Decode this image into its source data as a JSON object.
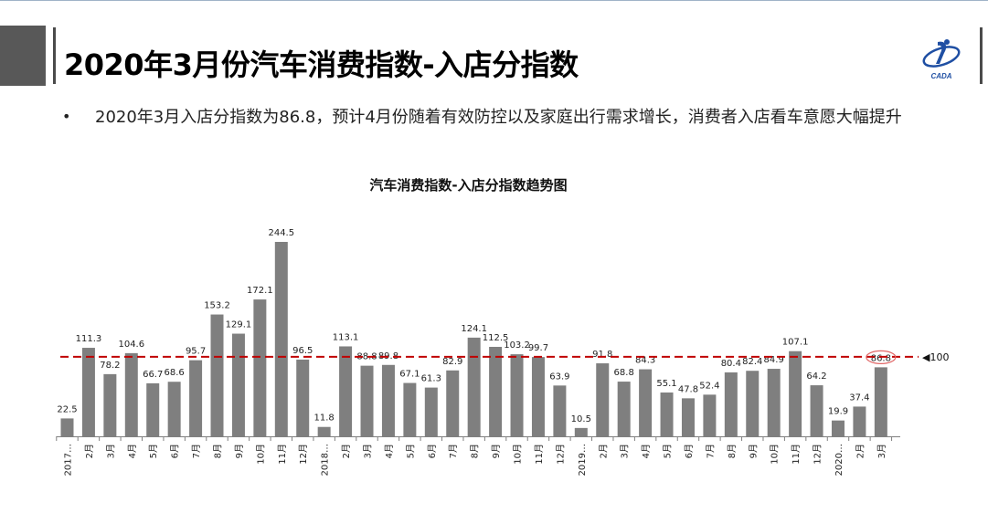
{
  "header": {
    "title": "2020年3月份汽车消费指数-入店分指数"
  },
  "bullet": {
    "text": "2020年3月入店分指数为86.8，预计4月份随着有效防控以及家庭出行需求增长，消费者入店看车意愿大幅提升"
  },
  "chart_data": {
    "type": "bar",
    "title": "汽车消费指数-入店分指数趋势图",
    "categories": [
      "2017…",
      "2月",
      "3月",
      "4月",
      "5月",
      "6月",
      "7月",
      "8月",
      "9月",
      "10月",
      "11月",
      "12月",
      "2018…",
      "2月",
      "3月",
      "4月",
      "5月",
      "6月",
      "7月",
      "8月",
      "9月",
      "10月",
      "11月",
      "12月",
      "2019…",
      "2月",
      "3月",
      "4月",
      "5月",
      "6月",
      "7月",
      "8月",
      "9月",
      "10月",
      "11月",
      "12月",
      "2020…",
      "2月",
      "3月"
    ],
    "values": [
      22.5,
      111.3,
      78.2,
      104.6,
      66.7,
      68.6,
      95.7,
      153.2,
      129.1,
      172.1,
      244.5,
      96.5,
      11.8,
      113.1,
      88.8,
      89.8,
      67.1,
      61.3,
      82.9,
      124.1,
      112.5,
      103.2,
      99.7,
      63.9,
      10.5,
      91.8,
      68.8,
      84.3,
      55.1,
      47.8,
      52.4,
      80.4,
      82.4,
      84.9,
      107.1,
      64.2,
      19.9,
      37.4,
      86.8
    ],
    "value_labels": [
      "22.5",
      "111.3",
      "78.2",
      "104.6",
      "66.7",
      "68.6",
      "95.7",
      "153.2",
      "129.1",
      "172.1",
      "244.5",
      "96.5",
      "11.8",
      "113.1",
      "88.8",
      "89.8",
      "67.1",
      "61.3",
      "82.9",
      "124.1",
      "112.5",
      "103.2",
      "99.7",
      "63.9",
      "10.5",
      "91.8",
      "68.8",
      "84.3",
      "55.1",
      "47.8",
      "52.4",
      "80.4",
      "82.4",
      "84.9",
      "107.1",
      "64.2",
      "19.9",
      "37.4",
      "86.8"
    ],
    "reference_line": {
      "value": 100,
      "label": "◀100",
      "color": "#c00000"
    },
    "bar_color": "#7f7f7f",
    "highlight": {
      "index": 38,
      "color": "#e06666"
    },
    "ylim": [
      0,
      250
    ]
  }
}
